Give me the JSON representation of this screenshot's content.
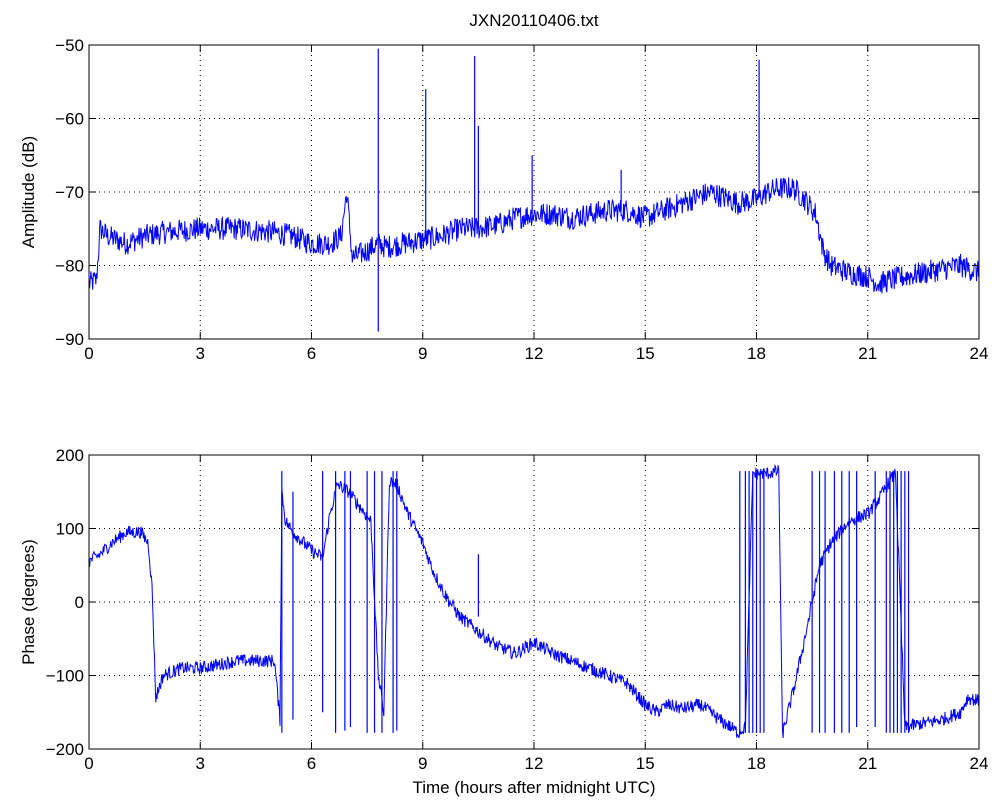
{
  "figure": {
    "title": "JXN20110406.txt"
  },
  "chart_data": [
    {
      "type": "line",
      "title": "JXN20110406.txt",
      "xlabel": "",
      "ylabel": "Amplitude (dB)",
      "xlim": [
        0,
        24
      ],
      "ylim": [
        -90,
        -50
      ],
      "xticks": [
        0,
        3,
        6,
        9,
        12,
        15,
        18,
        21,
        24
      ],
      "yticks": [
        -90,
        -80,
        -70,
        -60,
        -50
      ],
      "grid": true,
      "line_color": "#0000ff",
      "series": [
        {
          "x": [
            0,
            0.2,
            0.3,
            0.5,
            1.0,
            1.5,
            2.0,
            3.0,
            4.0,
            5.0,
            5.5,
            6.0,
            6.5,
            6.8,
            6.95,
            7.1,
            7.5,
            7.8,
            8.0,
            8.5,
            9.0,
            9.5,
            10.0,
            10.4,
            11.0,
            11.5,
            12.0,
            12.5,
            13.0,
            13.5,
            14.0,
            14.5,
            15.0,
            15.5,
            16.0,
            16.5,
            16.8,
            17.0,
            17.5,
            18.0,
            18.3,
            18.6,
            19.0,
            19.3,
            19.6,
            19.8,
            20.0,
            20.5,
            21.0,
            21.3,
            21.6,
            22.0,
            22.5,
            23.0,
            23.5,
            24.0
          ],
          "y": [
            -82.5,
            -82,
            -75,
            -76,
            -77,
            -76,
            -75.5,
            -75,
            -75,
            -75.5,
            -76,
            -77,
            -77,
            -76,
            -70,
            -79,
            -78,
            -77,
            -77.5,
            -77,
            -76.5,
            -76,
            -75,
            -75,
            -74.5,
            -73.5,
            -73,
            -73,
            -73.5,
            -73,
            -72.5,
            -72.5,
            -73.5,
            -72.5,
            -71.5,
            -70.5,
            -70,
            -70.5,
            -71.5,
            -71,
            -70,
            -69.5,
            -69.5,
            -71,
            -73,
            -78,
            -80,
            -81,
            -81.5,
            -82.5,
            -82,
            -81.5,
            -81,
            -80.5,
            -80,
            -81
          ]
        }
      ],
      "spikes": [
        {
          "x": 7.8,
          "top": -50.5,
          "bottom": -89
        },
        {
          "x": 9.08,
          "top": -56
        },
        {
          "x": 10.4,
          "top": -51.5
        },
        {
          "x": 10.5,
          "top": -61
        },
        {
          "x": 11.95,
          "top": -65
        },
        {
          "x": 14.35,
          "top": -67
        },
        {
          "x": 18.07,
          "top": -52
        }
      ]
    },
    {
      "type": "line",
      "title": "",
      "xlabel": "Time (hours after midnight UTC)",
      "ylabel": "Phase (degrees)",
      "xlim": [
        0,
        24
      ],
      "ylim": [
        -200,
        200
      ],
      "xticks": [
        0,
        3,
        6,
        9,
        12,
        15,
        18,
        21,
        24
      ],
      "yticks": [
        -200,
        -100,
        0,
        100,
        200
      ],
      "grid": true,
      "line_color": "#0000ff",
      "series": [
        {
          "x": [
            0,
            0.3,
            0.6,
            1.0,
            1.4,
            1.6,
            1.7,
            1.8,
            2.0,
            2.5,
            3.0,
            3.5,
            4.0,
            4.5,
            5.0,
            5.15,
            5.2,
            5.3,
            5.5,
            6.0,
            6.3,
            6.5,
            6.7,
            7.0,
            7.3,
            7.6,
            7.8,
            7.95,
            8.1,
            8.3,
            8.6,
            9.0,
            9.3,
            9.6,
            10.0,
            10.5,
            11.0,
            11.5,
            12.0,
            12.5,
            13.0,
            13.5,
            14.0,
            14.5,
            15.0,
            15.3,
            15.6,
            16.0,
            16.5,
            17.0,
            17.3,
            17.5,
            17.7,
            17.9,
            18.1,
            18.3,
            18.6,
            18.7,
            19.0,
            19.3,
            19.5,
            19.7,
            20.0,
            20.5,
            21.0,
            21.3,
            21.6,
            21.75,
            22.0,
            22.5,
            23.0,
            23.5,
            23.7,
            24.0
          ],
          "y": [
            55,
            65,
            80,
            95,
            95,
            80,
            20,
            -130,
            -100,
            -90,
            -90,
            -85,
            -80,
            -80,
            -80,
            -160,
            150,
            110,
            95,
            70,
            60,
            120,
            160,
            150,
            130,
            110,
            -100,
            -150,
            165,
            160,
            120,
            80,
            40,
            10,
            -20,
            -40,
            -60,
            -70,
            -55,
            -70,
            -80,
            -90,
            -100,
            -110,
            -140,
            -150,
            -140,
            -145,
            -140,
            -160,
            -170,
            -178,
            -170,
            175,
            175,
            175,
            178,
            -180,
            -120,
            -50,
            0,
            50,
            80,
            110,
            120,
            140,
            165,
            175,
            -170,
            -165,
            -160,
            -150,
            -130,
            -135
          ]
        }
      ],
      "wraps": [
        {
          "x": 5.2,
          "top": 178,
          "bottom": -178
        },
        {
          "x": 5.5,
          "top": 150,
          "bottom": -160
        },
        {
          "x": 6.3,
          "top": 178,
          "bottom": -150
        },
        {
          "x": 6.65,
          "top": 178,
          "bottom": -178
        },
        {
          "x": 6.9,
          "top": 178,
          "bottom": -175
        },
        {
          "x": 7.05,
          "top": 178,
          "bottom": -170
        },
        {
          "x": 7.5,
          "top": 178,
          "bottom": -178
        },
        {
          "x": 7.7,
          "top": 178,
          "bottom": -178
        },
        {
          "x": 7.9,
          "top": 178,
          "bottom": -178
        },
        {
          "x": 8.2,
          "top": 178,
          "bottom": -178
        },
        {
          "x": 8.3,
          "top": 178,
          "bottom": -175
        },
        {
          "x": 10.5,
          "top": 65,
          "bottom": -20
        },
        {
          "x": 17.55,
          "top": 178,
          "bottom": -178
        },
        {
          "x": 17.7,
          "top": 178,
          "bottom": -178
        },
        {
          "x": 17.8,
          "top": 178,
          "bottom": -178
        },
        {
          "x": 17.9,
          "top": 178,
          "bottom": -178
        },
        {
          "x": 18.0,
          "top": 178,
          "bottom": -178
        },
        {
          "x": 18.1,
          "top": 178,
          "bottom": -178
        },
        {
          "x": 18.2,
          "top": 178,
          "bottom": -178
        },
        {
          "x": 19.5,
          "top": 178,
          "bottom": -178
        },
        {
          "x": 19.7,
          "top": 178,
          "bottom": -178
        },
        {
          "x": 19.85,
          "top": 178,
          "bottom": -178
        },
        {
          "x": 20.1,
          "top": 178,
          "bottom": -178
        },
        {
          "x": 20.3,
          "top": 178,
          "bottom": -178
        },
        {
          "x": 20.5,
          "top": 178,
          "bottom": -178
        },
        {
          "x": 20.7,
          "top": 178,
          "bottom": -170
        },
        {
          "x": 21.2,
          "top": 178,
          "bottom": -170
        },
        {
          "x": 21.5,
          "top": 178,
          "bottom": -178
        },
        {
          "x": 21.6,
          "top": 178,
          "bottom": -178
        },
        {
          "x": 21.7,
          "top": 178,
          "bottom": -178
        },
        {
          "x": 21.8,
          "top": 178,
          "bottom": -178
        },
        {
          "x": 21.9,
          "top": 178,
          "bottom": -178
        },
        {
          "x": 22.0,
          "top": 178,
          "bottom": -178
        },
        {
          "x": 22.1,
          "top": 178,
          "bottom": -178
        }
      ]
    }
  ]
}
